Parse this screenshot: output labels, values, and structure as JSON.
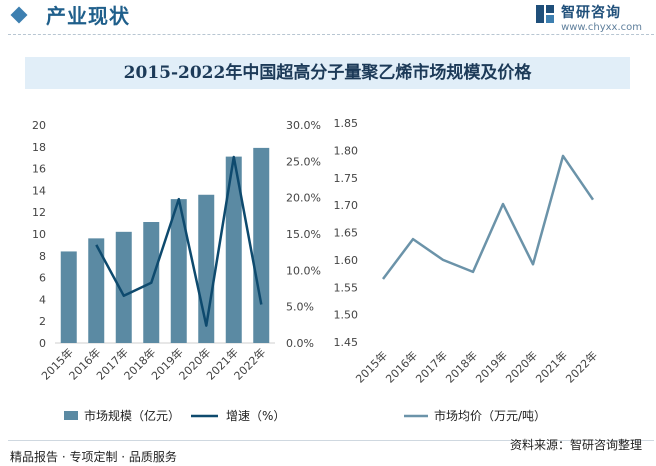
{
  "header": {
    "title": "产业现状",
    "brand_name": "智研咨询",
    "brand_url": "www.chyxx.com"
  },
  "chart_title": "2015-2022年中国超高分子量聚乙烯市场规模及价格",
  "footer": {
    "left": "精品报告 · 专项定制 · 品质服务",
    "source": "资料来源：智研咨询整理"
  },
  "colors": {
    "bar": "#5b8aa3",
    "growth_line": "#0e4a6e",
    "price_line": "#6b93a9",
    "accent": "#1f5f8b"
  },
  "chart_data": [
    {
      "type": "bar",
      "categories": [
        "2015年",
        "2016年",
        "2017年",
        "2018年",
        "2019年",
        "2020年",
        "2021年",
        "2022年"
      ],
      "series": [
        {
          "name": "市场规模（亿元）",
          "type": "bar",
          "axis": "left",
          "values": [
            8.4,
            9.6,
            10.2,
            11.1,
            13.2,
            13.6,
            17.1,
            17.9
          ]
        },
        {
          "name": "增速（%）",
          "type": "line",
          "axis": "right",
          "values": [
            null,
            13.5,
            6.5,
            8.3,
            19.8,
            2.4,
            25.6,
            5.3
          ]
        }
      ],
      "y_left": {
        "min": 0,
        "max": 20,
        "step": 2,
        "ticks": [
          "0",
          "2",
          "4",
          "6",
          "8",
          "10",
          "12",
          "14",
          "16",
          "18",
          "20"
        ]
      },
      "y_right": {
        "min": 0,
        "max": 30,
        "step": 5,
        "ticks": [
          "0.0%",
          "5.0%",
          "10.0%",
          "15.0%",
          "20.0%",
          "25.0%",
          "30.0%"
        ]
      },
      "legend": "bottom"
    },
    {
      "type": "line",
      "categories": [
        "2015年",
        "2016年",
        "2017年",
        "2018年",
        "2019年",
        "2020年",
        "2021年",
        "2022年"
      ],
      "series": [
        {
          "name": "市场均价（万元/吨）",
          "values": [
            1.565,
            1.638,
            1.6,
            1.578,
            1.702,
            1.592,
            1.79,
            1.71
          ]
        }
      ],
      "y": {
        "min": 1.45,
        "max": 1.85,
        "step": 0.05,
        "ticks": [
          "1.45",
          "1.50",
          "1.55",
          "1.60",
          "1.65",
          "1.70",
          "1.75",
          "1.80",
          "1.85"
        ]
      },
      "legend": "bottom"
    }
  ]
}
